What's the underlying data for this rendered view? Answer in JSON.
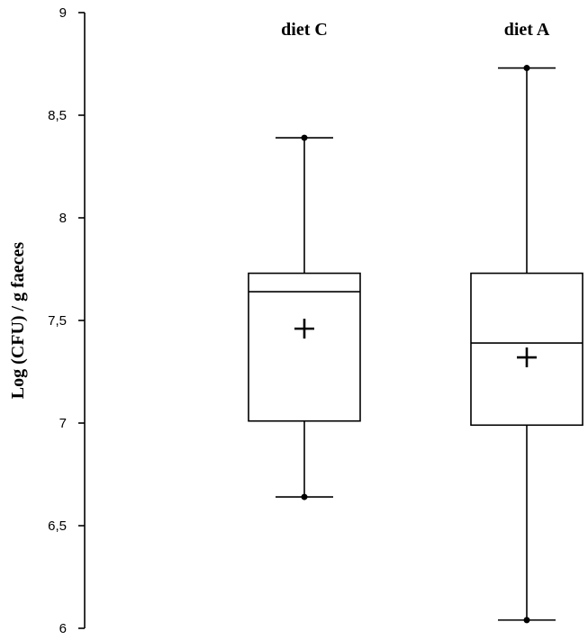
{
  "chart_data": {
    "type": "box",
    "ylabel": "Log (CFU) / g faeces",
    "ylim": [
      6,
      9
    ],
    "yticks": [
      "6",
      "6,5",
      "7",
      "7,5",
      "8",
      "8,5",
      "9"
    ],
    "ytick_values": [
      6,
      6.5,
      7,
      7.5,
      8,
      8.5,
      9
    ],
    "grid": false,
    "groups": [
      {
        "name": "diet C",
        "min": 6.64,
        "q1": 7.01,
        "median": 7.64,
        "mean": 7.46,
        "q3": 7.73,
        "max": 8.39
      },
      {
        "name": "diet A",
        "min": 6.04,
        "q1": 6.99,
        "median": 7.39,
        "mean": 7.32,
        "q3": 7.73,
        "max": 8.73
      }
    ]
  }
}
